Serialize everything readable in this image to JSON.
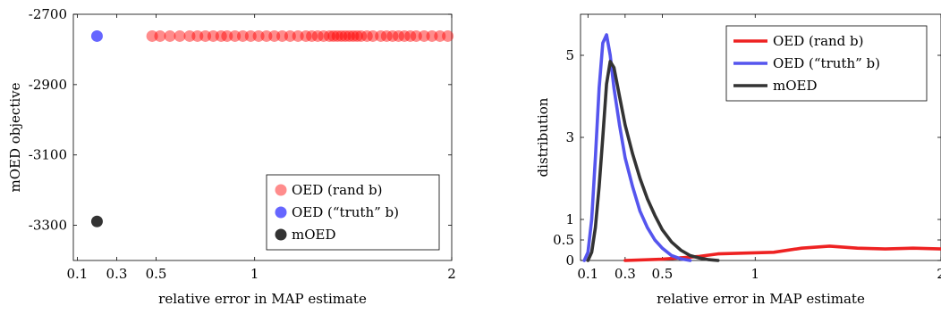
{
  "colors": {
    "oed_rand_b": "#ff0000",
    "oed_truth_b": "#5555ff",
    "moed": "#333333"
  },
  "chart_data": [
    {
      "type": "scatter",
      "title": "",
      "xlabel": "relative error in MAP estimate",
      "ylabel": "mOED objective",
      "xlim": [
        0.08,
        2
      ],
      "ylim": [
        -3400,
        -2700
      ],
      "x_ticks": [
        0.1,
        0.3,
        0.5,
        1,
        2
      ],
      "x_tick_labels": [
        "0.1",
        "0.3",
        "0.5",
        "1",
        "2"
      ],
      "y_ticks": [
        -2700,
        -2900,
        -3100,
        -3300
      ],
      "y_tick_labels": [
        "-2700",
        "-2900",
        "-3100",
        "-3300"
      ],
      "grid": false,
      "legend_position": "bottom-right",
      "series": [
        {
          "name": "OED (rand b)",
          "color": "#ff0000",
          "opacity": 0.45,
          "x": [
            0.48,
            0.52,
            0.57,
            0.62,
            0.67,
            0.71,
            0.75,
            0.79,
            0.83,
            0.86,
            0.9,
            0.94,
            0.98,
            1.02,
            1.06,
            1.1,
            1.14,
            1.18,
            1.22,
            1.26,
            1.29,
            1.32,
            1.35,
            1.38,
            1.4,
            1.42,
            1.44,
            1.46,
            1.48,
            1.5,
            1.52,
            1.54,
            1.57,
            1.6,
            1.64,
            1.67,
            1.7,
            1.73,
            1.76,
            1.79,
            1.82,
            1.86,
            1.9,
            1.94,
            1.98
          ],
          "y": [
            -2762,
            -2762,
            -2762,
            -2762,
            -2762,
            -2762,
            -2762,
            -2762,
            -2762,
            -2762,
            -2762,
            -2762,
            -2762,
            -2762,
            -2762,
            -2762,
            -2762,
            -2762,
            -2762,
            -2762,
            -2762,
            -2762,
            -2762,
            -2762,
            -2762,
            -2762,
            -2762,
            -2762,
            -2762,
            -2762,
            -2762,
            -2762,
            -2762,
            -2762,
            -2762,
            -2762,
            -2762,
            -2762,
            -2762,
            -2762,
            -2762,
            -2762,
            -2762,
            -2762,
            -2762
          ]
        },
        {
          "name": "OED (“truth” b)",
          "color": "#5555ff",
          "opacity": 0.9,
          "x": [
            0.2
          ],
          "y": [
            -2762
          ]
        },
        {
          "name": "mOED",
          "color": "#333333",
          "opacity": 1,
          "x": [
            0.2
          ],
          "y": [
            -3289
          ]
        }
      ]
    },
    {
      "type": "line",
      "title": "",
      "xlabel": "relative error in MAP estimate",
      "ylabel": "distribution",
      "xlim": [
        0.06,
        2
      ],
      "ylim": [
        0,
        6
      ],
      "x_ticks": [
        0.1,
        0.3,
        0.5,
        1,
        2
      ],
      "x_tick_labels": [
        "0.1",
        "0.3",
        "0.5",
        "1",
        "2"
      ],
      "y_ticks": [
        0,
        0.5,
        1,
        3,
        5
      ],
      "y_tick_labels": [
        "0",
        "0.5",
        "1",
        "3",
        "5"
      ],
      "grid": false,
      "legend_position": "top-right",
      "series": [
        {
          "name": "OED (rand b)",
          "color": "#ee2222",
          "x": [
            0.3,
            0.5,
            0.7,
            0.8,
            0.95,
            1.1,
            1.25,
            1.4,
            1.55,
            1.7,
            1.85,
            2.0
          ],
          "y": [
            0.0,
            0.03,
            0.1,
            0.16,
            0.18,
            0.2,
            0.3,
            0.35,
            0.3,
            0.28,
            0.3,
            0.28
          ]
        },
        {
          "name": "OED (“truth” b)",
          "color": "#5555ee",
          "x": [
            0.08,
            0.1,
            0.12,
            0.14,
            0.16,
            0.18,
            0.2,
            0.22,
            0.24,
            0.27,
            0.3,
            0.34,
            0.38,
            0.42,
            0.46,
            0.5,
            0.55,
            0.6,
            0.65
          ],
          "y": [
            0.0,
            0.2,
            1.0,
            2.5,
            4.2,
            5.3,
            5.5,
            5.0,
            4.2,
            3.3,
            2.5,
            1.8,
            1.2,
            0.8,
            0.5,
            0.3,
            0.12,
            0.04,
            0.0
          ]
        },
        {
          "name": "mOED",
          "color": "#333333",
          "x": [
            0.1,
            0.12,
            0.14,
            0.16,
            0.18,
            0.2,
            0.22,
            0.24,
            0.27,
            0.3,
            0.34,
            0.38,
            0.42,
            0.46,
            0.5,
            0.55,
            0.6,
            0.65,
            0.7,
            0.75,
            0.8
          ],
          "y": [
            0.0,
            0.2,
            0.8,
            1.8,
            3.0,
            4.3,
            4.85,
            4.7,
            4.0,
            3.3,
            2.6,
            2.0,
            1.5,
            1.1,
            0.75,
            0.45,
            0.25,
            0.12,
            0.06,
            0.02,
            0.0
          ]
        }
      ]
    }
  ]
}
